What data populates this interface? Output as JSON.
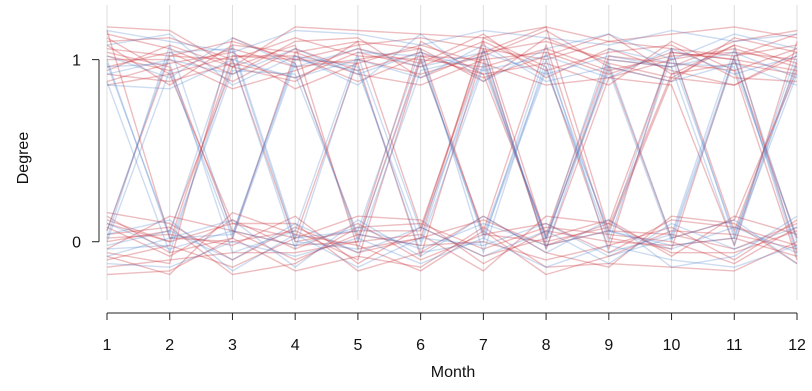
{
  "chart_data": {
    "type": "line",
    "xlabel": "Month",
    "ylabel": "Degree",
    "x_ticks": [
      1,
      2,
      3,
      4,
      5,
      6,
      7,
      8,
      9,
      10,
      11,
      12
    ],
    "y_ticks": [
      0,
      1
    ],
    "xlim": [
      1,
      12
    ],
    "ylim": [
      -0.32,
      1.3
    ],
    "grid": "vertical",
    "legend": "none",
    "colors": {
      "red": "#c8323c",
      "blue": "#3c78c8",
      "grid": "#dddddd",
      "axis": "#222222"
    },
    "series": [
      {
        "color": "red",
        "values": [
          1.18,
          1.16,
          0.96,
          1.18,
          1.16,
          1.14,
          1.12,
          1.18,
          1.1,
          1.14,
          1.18,
          1.12
        ]
      },
      {
        "color": "red",
        "values": [
          1.1,
          1.12,
          1.0,
          1.12,
          1.02,
          1.0,
          0.96,
          1.06,
          0.94,
          1.02,
          1.04,
          1.0
        ]
      },
      {
        "color": "red",
        "values": [
          1.06,
          1.02,
          1.1,
          1.0,
          1.08,
          1.12,
          1.06,
          1.0,
          1.1,
          1.06,
          1.02,
          1.08
        ]
      },
      {
        "color": "red",
        "values": [
          1.02,
          0.94,
          1.06,
          0.96,
          1.0,
          0.92,
          1.02,
          1.16,
          0.96,
          0.88,
          1.12,
          1.04
        ]
      },
      {
        "color": "red",
        "values": [
          0.96,
          1.04,
          0.88,
          1.06,
          0.94,
          1.04,
          0.9,
          1.02,
          1.14,
          0.92,
          0.98,
          0.92
        ]
      },
      {
        "color": "red",
        "values": [
          0.92,
          0.88,
          0.98,
          0.9,
          1.04,
          0.96,
          1.1,
          0.94,
          1.04,
          1.08,
          0.9,
          0.88
        ]
      },
      {
        "color": "red",
        "values": [
          0.88,
          0.98,
          1.04,
          0.84,
          0.98,
          1.08,
          0.98,
          0.86,
          0.9,
          1.0,
          1.06,
          0.96
        ]
      },
      {
        "color": "red",
        "values": [
          1.14,
          1.06,
          0.92,
          1.1,
          1.12,
          0.9,
          1.04,
          1.1,
          1.0,
          0.96,
          1.1,
          1.16
        ]
      },
      {
        "color": "red",
        "values": [
          0.86,
          0.92,
          1.02,
          1.02,
          0.88,
          1.02,
          0.92,
          0.98,
          0.86,
          1.1,
          0.94,
          1.06
        ]
      },
      {
        "color": "red",
        "values": [
          1.0,
          1.0,
          0.84,
          0.94,
          1.06,
          0.98,
          1.14,
          0.9,
          1.06,
          0.94,
          0.86,
          1.02
        ]
      },
      {
        "color": "red",
        "values": [
          1.08,
          0.86,
          1.08,
          1.04,
          0.92,
          0.86,
          1.0,
          1.04,
          0.92,
          1.04,
          1.0,
          0.94
        ]
      },
      {
        "color": "red",
        "values": [
          0.94,
          1.08,
          0.96,
          0.88,
          1.1,
          1.06,
          0.88,
          1.12,
          0.98,
          0.9,
          1.08,
          0.98
        ]
      },
      {
        "color": "red",
        "values": [
          0.16,
          0.1,
          -0.1,
          0.08,
          -0.06,
          0.02,
          0.12,
          -0.02,
          0.06,
          0.04,
          -0.04,
          0.1
        ]
      },
      {
        "color": "red",
        "values": [
          0.08,
          -0.08,
          0.12,
          -0.04,
          0.1,
          -0.1,
          0.04,
          0.1,
          -0.06,
          0.12,
          0.08,
          -0.02
        ]
      },
      {
        "color": "red",
        "values": [
          0.02,
          0.04,
          -0.02,
          0.14,
          -0.12,
          0.08,
          -0.08,
          0.02,
          0.12,
          -0.08,
          0.14,
          0.04
        ]
      },
      {
        "color": "red",
        "values": [
          -0.04,
          0.14,
          0.06,
          -0.1,
          0.04,
          -0.02,
          0.0,
          -0.1,
          -0.02,
          0.08,
          -0.1,
          0.12
        ]
      },
      {
        "color": "red",
        "values": [
          -0.1,
          -0.02,
          -0.14,
          0.02,
          0.14,
          0.12,
          -0.12,
          0.06,
          0.0,
          -0.02,
          0.02,
          -0.08
        ]
      },
      {
        "color": "red",
        "values": [
          -0.18,
          -0.16,
          0.02,
          -0.16,
          -0.08,
          -0.14,
          0.08,
          -0.14,
          -0.12,
          -0.14,
          -0.16,
          0.0
        ]
      },
      {
        "color": "red",
        "values": [
          -0.14,
          -0.1,
          -0.06,
          -0.06,
          0.0,
          0.04,
          -0.16,
          0.14,
          0.1,
          -0.06,
          -0.06,
          0.06
        ]
      },
      {
        "color": "red",
        "values": [
          0.12,
          0.0,
          0.1,
          0.1,
          -0.16,
          -0.06,
          0.14,
          -0.06,
          -0.14,
          0.14,
          0.1,
          -0.12
        ]
      },
      {
        "color": "red",
        "values": [
          0.04,
          0.08,
          -0.18,
          -0.12,
          0.08,
          0.1,
          -0.04,
          0.08,
          0.04,
          0.0,
          -0.12,
          0.08
        ]
      },
      {
        "color": "red",
        "values": [
          -0.08,
          -0.18,
          0.16,
          0.04,
          -0.02,
          -0.16,
          0.06,
          -0.18,
          -0.08,
          0.06,
          0.04,
          -0.04
        ]
      },
      {
        "color": "red",
        "values": [
          1.12,
          0.92,
          0.1,
          0.02,
          1.0,
          1.06,
          0.04,
          0.0,
          0.08,
          0.92,
          1.08,
          -0.06
        ]
      },
      {
        "color": "red",
        "values": [
          0.1,
          0.0,
          1.02,
          1.0,
          0.98,
          -0.08,
          1.04,
          1.18,
          0.06,
          0.9,
          0.86,
          1.04
        ]
      },
      {
        "color": "red",
        "values": [
          0.14,
          -0.06,
          0.02,
          1.04,
          1.1,
          0.08,
          1.06,
          -0.04,
          0.9,
          0.86,
          -0.02,
          1.1
        ]
      },
      {
        "color": "red",
        "values": [
          1.04,
          0.96,
          0.06,
          -0.02,
          0.0,
          1.02,
          1.0,
          -0.02,
          0.1,
          1.04,
          1.0,
          0.02
        ]
      },
      {
        "color": "red",
        "values": [
          0.0,
          0.06,
          0.96,
          1.08,
          -0.04,
          0.02,
          1.12,
          0.96,
          -0.04,
          1.06,
          0.06,
          0.98
        ]
      },
      {
        "color": "red",
        "values": [
          -0.06,
          -0.12,
          1.12,
          0.98,
          0.02,
          1.1,
          0.92,
          0.04,
          1.02,
          0.98,
          0.94,
          -0.1
        ]
      },
      {
        "color": "red",
        "values": [
          1.16,
          0.02,
          0.0,
          0.06,
          -0.1,
          1.0,
          0.06,
          1.08,
          0.02,
          -0.04,
          1.02,
          1.14
        ]
      },
      {
        "color": "red",
        "values": [
          0.06,
          1.02,
          1.0,
          0.0,
          0.06,
          0.06,
          1.1,
          0.02,
          0.96,
          0.02,
          0.12,
          0.94
        ]
      },
      {
        "color": "blue",
        "values": [
          1.16,
          1.1,
          1.04,
          1.16,
          1.14,
          1.08,
          1.16,
          1.12,
          1.08,
          1.16,
          1.1,
          1.14
        ]
      },
      {
        "color": "blue",
        "values": [
          1.02,
          0.9,
          1.12,
          0.96,
          1.06,
          0.96,
          1.04,
          0.92,
          1.02,
          0.96,
          1.04,
          0.9
        ]
      },
      {
        "color": "blue",
        "values": [
          0.92,
          1.0,
          0.92,
          1.06,
          0.92,
          1.04,
          0.94,
          1.02,
          0.9,
          1.06,
          0.92,
          1.02
        ]
      },
      {
        "color": "blue",
        "values": [
          0.86,
          0.84,
          1.0,
          0.9,
          1.0,
          0.9,
          1.08,
          0.88,
          0.96,
          0.88,
          0.98,
          0.86
        ]
      },
      {
        "color": "blue",
        "values": [
          1.08,
          1.14,
          0.86,
          1.02,
          0.86,
          1.14,
          0.88,
          1.06,
          1.14,
          1.0,
          1.14,
          1.06
        ]
      },
      {
        "color": "blue",
        "values": [
          0.1,
          -0.04,
          0.06,
          -0.02,
          0.08,
          -0.04,
          0.1,
          -0.02,
          0.06,
          -0.04,
          0.08,
          -0.06
        ]
      },
      {
        "color": "blue",
        "values": [
          -0.02,
          0.06,
          -0.1,
          0.1,
          -0.06,
          0.08,
          -0.08,
          0.06,
          -0.12,
          0.1,
          -0.04,
          0.08
        ]
      },
      {
        "color": "blue",
        "values": [
          -0.12,
          -0.14,
          0.0,
          -0.08,
          0.02,
          -0.12,
          0.02,
          -0.14,
          -0.02,
          -0.1,
          -0.14,
          -0.02
        ]
      },
      {
        "color": "blue",
        "values": [
          0.04,
          0.12,
          -0.16,
          0.04,
          -0.14,
          0.02,
          -0.02,
          0.1,
          -0.08,
          0.02,
          0.12,
          -0.12
        ]
      },
      {
        "color": "blue",
        "values": [
          -0.08,
          0.02,
          0.12,
          -0.14,
          0.12,
          -0.08,
          0.14,
          -0.06,
          0.12,
          -0.14,
          -0.08,
          0.14
        ]
      },
      {
        "color": "blue",
        "values": [
          0.88,
          -0.06,
          1.0,
          -0.04,
          1.02,
          0.06,
          0.98,
          0.02,
          0.94,
          0.0,
          1.0,
          -0.04
        ]
      },
      {
        "color": "blue",
        "values": [
          0.0,
          0.94,
          0.02,
          0.98,
          0.0,
          1.0,
          0.04,
          0.96,
          0.0,
          1.02,
          0.04,
          0.96
        ]
      },
      {
        "color": "blue",
        "values": [
          1.0,
          0.02,
          0.04,
          1.02,
          0.96,
          -0.06,
          0.0,
          1.04,
          -0.06,
          0.04,
          1.06,
          0.0
        ]
      },
      {
        "color": "blue",
        "values": [
          0.06,
          1.04,
          1.06,
          0.0,
          -0.04,
          0.94,
          1.02,
          0.0,
          1.0,
          0.96,
          -0.02,
          1.0
        ]
      },
      {
        "color": "blue",
        "values": [
          0.96,
          0.98,
          -0.06,
          0.06,
          1.04,
          1.02,
          0.02,
          0.94,
          0.06,
          -0.02,
          0.02,
          1.04
        ]
      },
      {
        "color": "blue",
        "values": [
          -0.04,
          -0.02,
          0.94,
          0.92,
          0.04,
          -0.02,
          0.96,
          0.02,
          1.06,
          0.98,
          0.96,
          0.02
        ]
      },
      {
        "color": "blue",
        "values": [
          0.98,
          0.04,
          1.08,
          0.02,
          0.06,
          1.06,
          -0.06,
          1.0,
          0.04,
          1.06,
          0.02,
          0.92
        ]
      },
      {
        "color": "blue",
        "values": [
          0.02,
          1.08,
          0.04,
          1.0,
          0.94,
          0.0,
          1.06,
          -0.04,
          0.98,
          0.02,
          1.02,
          -0.08
        ]
      }
    ]
  }
}
